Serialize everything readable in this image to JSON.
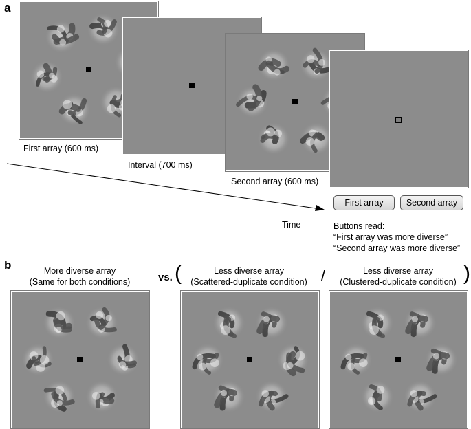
{
  "panel_a": {
    "letter": "a",
    "first_caption": "First array (600 ms)",
    "interval_caption": "Interval (700 ms)",
    "second_caption": "Second array (600 ms)",
    "time_label": "Time",
    "buttons": {
      "first": "First array",
      "second": "Second array"
    },
    "buttons_note": [
      "Buttons read:",
      "“First array was more diverse”",
      "“Second array was more diverse”"
    ]
  },
  "panel_b": {
    "letter": "b",
    "more_title": [
      "More diverse array",
      "(Same for both conditions)"
    ],
    "vs": "vs.",
    "slash": "/",
    "less_scattered_title": [
      "Less diverse array",
      "(Scattered-duplicate condition)"
    ],
    "less_clustered_title": [
      "Less diverse array",
      "(Clustered-duplicate condition)"
    ]
  },
  "colors": {
    "background_grey": "#8c8c8c",
    "fixation": "#000000",
    "response_fixation": "#7f7f7f"
  }
}
